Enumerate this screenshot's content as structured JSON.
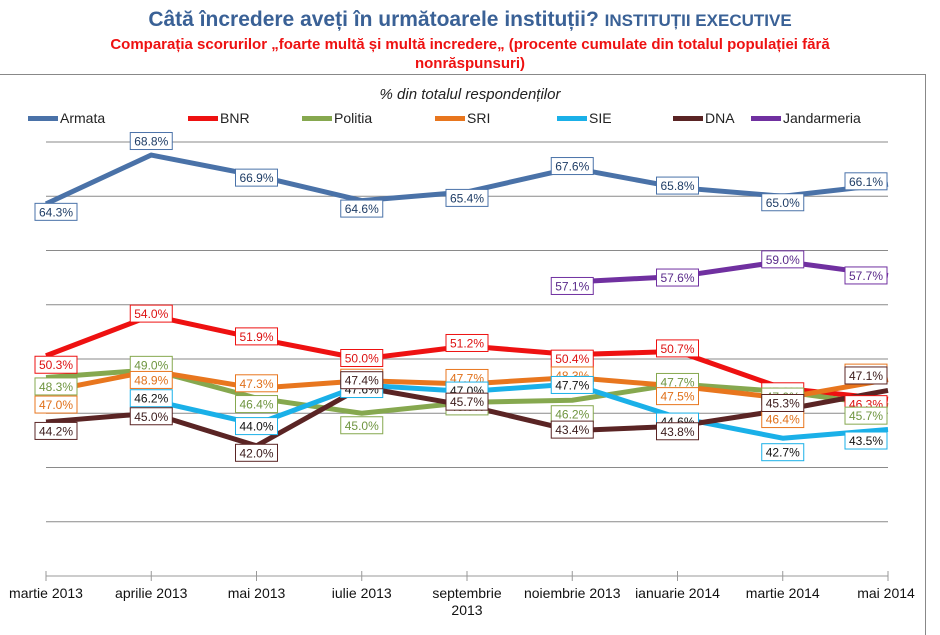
{
  "header": {
    "title_main": "Câtă încredere aveți în următoarele instituții?",
    "title_suffix": "INSTITUȚII EXECUTIVE",
    "subtitle": "Comparația scorurilor „foarte multă și multă incredere„ (procente cumulate din totalul populației fără nonrăspunsuri)"
  },
  "chart_data": {
    "type": "line",
    "title": "Câtă încredere aveți în următoarele instituții? INSTITUȚII EXECUTIVE",
    "subtitle": "Comparația scorurilor „foarte multă și multă incredere„ (procente cumulate din totalul populației fără nonrăspunsuri)",
    "unit_label": "% din totalul respondenților",
    "xlabel": "",
    "ylabel": "",
    "ylim": [
      30,
      70
    ],
    "grid": true,
    "legend_position": "top",
    "categories": [
      "martie 2013",
      "aprilie 2013",
      "mai 2013",
      "iulie 2013",
      "septembrie 2013",
      "noiembrie 2013",
      "ianuarie 2014",
      "martie 2014",
      "mai 2014"
    ],
    "series": [
      {
        "name": "Armata",
        "color": "#4a72a8",
        "label_text": "#1f3d66",
        "values": [
          64.3,
          68.8,
          66.9,
          64.6,
          65.4,
          67.6,
          65.8,
          65.0,
          66.1
        ]
      },
      {
        "name": "BNR",
        "color": "#ee1111",
        "label_text": "#dd1111",
        "values": [
          50.3,
          54.0,
          51.9,
          50.0,
          51.2,
          50.4,
          50.7,
          47.3,
          46.3
        ]
      },
      {
        "name": "Politia",
        "color": "#86a84f",
        "label_text": "#6f9540",
        "values": [
          48.3,
          49.0,
          46.4,
          45.0,
          46.0,
          46.2,
          47.7,
          47.0,
          45.7
        ]
      },
      {
        "name": "SRI",
        "color": "#e8761e",
        "label_text": "#e0701a",
        "values": [
          47.0,
          48.9,
          47.3,
          48.0,
          47.7,
          48.3,
          47.5,
          46.4,
          48.1
        ]
      },
      {
        "name": "SIE",
        "color": "#1ab0e8",
        "label_text": "#111111",
        "values": [
          null,
          46.2,
          44.0,
          47.6,
          47.0,
          47.7,
          44.6,
          42.7,
          43.5
        ]
      },
      {
        "name": "DNA",
        "color": "#5a2424",
        "label_text": "#3a1a1a",
        "values": [
          44.2,
          45.0,
          42.0,
          47.4,
          45.7,
          43.4,
          43.8,
          45.3,
          47.1
        ]
      },
      {
        "name": "Jandarmeria",
        "color": "#7030a0",
        "label_text": "#5a2a8a",
        "values": [
          null,
          null,
          null,
          null,
          null,
          57.1,
          57.6,
          59.0,
          57.7
        ]
      }
    ]
  }
}
